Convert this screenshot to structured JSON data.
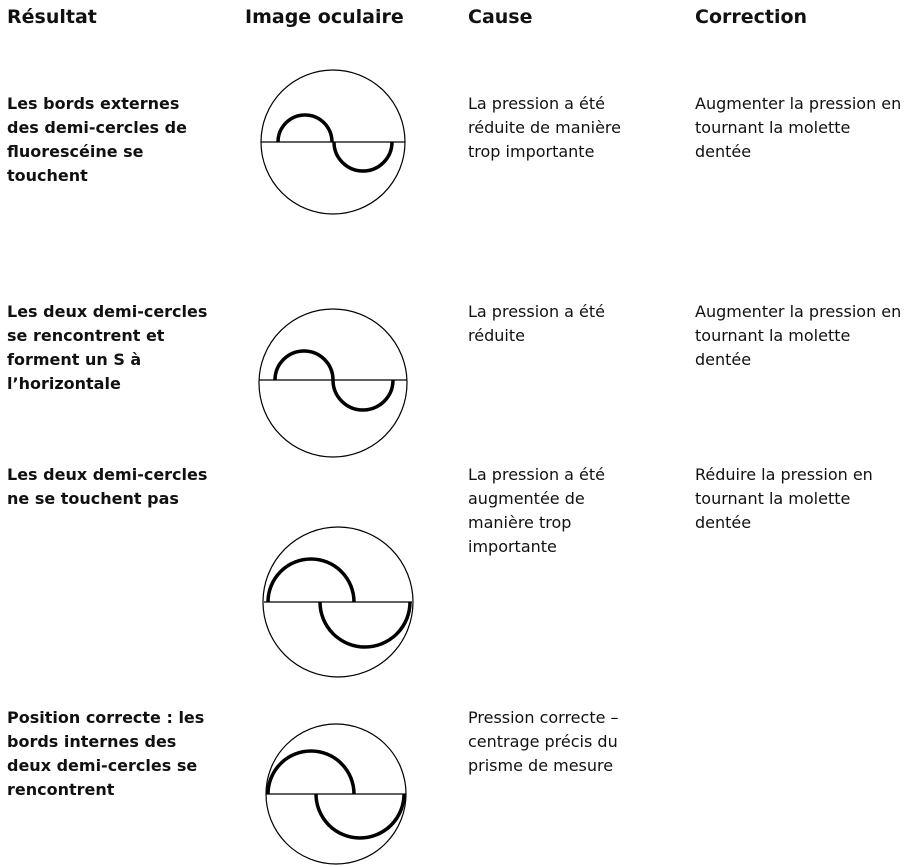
{
  "header": {
    "columns": [
      "Résultat",
      "Image oculaire",
      "Cause",
      "Correction"
    ]
  },
  "table": {
    "rows": [
      [
        "Les bords externes des demi-cercles de fluorescéine se touchent",
        "La pression a été réduite de manière trop importante",
        "Augmenter la pression en tournant la molette dentée"
      ],
      [
        "Les deux demi-cercles se rencontrent et forment un S à l’horizontale",
        "La pression a été réduite",
        "Augmenter la pression en tournant la molette dentée"
      ],
      [
        "Les deux demi-cercles ne se touchent pas",
        "La pression a été augmentée de manière trop importante",
        "Réduire la pression en tournant la molette dentée"
      ],
      [
        "Position correcte : les bords internes des deux demi-cercles se rencontrent",
        "Pression correcte – centrage précis du prisme de mesure",
        ""
      ]
    ]
  }
}
